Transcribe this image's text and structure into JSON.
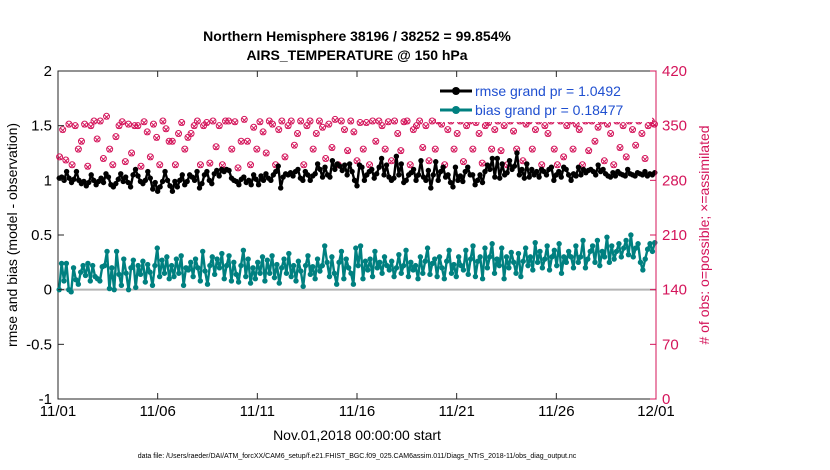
{
  "chart_data": {
    "type": "line",
    "title_lines": [
      "Northern Hemisphere 38196 / 38252 = 99.854%",
      "AIRS_TEMPERATURE @ 150 hPa"
    ],
    "xlabel": "Nov.01,2018 00:00:00 start",
    "ylabel": "rmse and bias (model - observation)",
    "y2label": "# of obs: o=possible; ×=assimilated",
    "x_ticks": [
      "11/01",
      "11/06",
      "11/11",
      "11/16",
      "11/21",
      "11/26",
      "12/01"
    ],
    "y_ticks": [
      "-1",
      "-0.5",
      "0",
      "0.5",
      "1",
      "1.5",
      "2"
    ],
    "y2_ticks": [
      "0",
      "70",
      "140",
      "210",
      "280",
      "350",
      "420"
    ],
    "xlim": [
      0,
      30
    ],
    "ylim": [
      -1,
      2
    ],
    "y2lim": [
      0,
      420
    ],
    "grid": false,
    "legend_position": "top-right",
    "zero_line": true,
    "colors": {
      "rmse": "#000000",
      "bias": "#008080",
      "obs": "#d4145a",
      "zero": "#b4b4b4"
    },
    "footnote": "data file: /Users/raeder/DAI/ATM_forcXX/CAM6_setup/f.e21.FHIST_BGC.f09_025.CAM6assim.011/Diags_NTrS_2018-11/obs_diag_output.nc",
    "series": [
      {
        "name": "rmse grand pr = 1.0492",
        "axis": "left",
        "values": [
          1.02,
          1.03,
          1.0,
          1.08,
          1.02,
          0.98,
          1.01,
          1.08,
          1.0,
          0.97,
          0.99,
          0.95,
          0.98,
          1.05,
          1.0,
          0.96,
          0.99,
          1.02,
          0.98,
          1.06,
          1.03,
          0.96,
          0.94,
          0.97,
          1.01,
          1.06,
          0.99,
          1.03,
          0.98,
          0.94,
          1.05,
          1.1,
          1.04,
          0.99,
          0.97,
          1.0,
          1.08,
          1.02,
          0.92,
          0.98,
          0.9,
          0.94,
          0.99,
          1.08,
          1.0,
          0.95,
          0.9,
          0.99,
          0.94,
          1.0,
          1.05,
          0.96,
          0.99,
          1.05,
          1.03,
          1.0,
          1.08,
          0.93,
          0.97,
          1.05,
          1.08,
          1.0,
          0.97,
          1.06,
          1.09,
          1.04,
          1.1,
          1.08,
          1.1,
          1.09,
          1.02,
          1.0,
          0.99,
          0.96,
          1.01,
          1.03,
          0.98,
          1.0,
          0.96,
          1.05,
          1.01,
          0.96,
          1.04,
          1.0,
          1.06,
          1.02,
          1.0,
          1.05,
          1.08,
          1.13,
          0.93,
          1.03,
          1.06,
          1.05,
          1.07,
          1.04,
          1.08,
          1.1,
          1.02,
          1.0,
          1.08,
          1.05,
          1.0,
          1.04,
          1.06,
          1.15,
          1.1,
          1.03,
          1.12,
          1.05,
          1.03,
          1.18,
          1.1,
          1.15,
          1.13,
          1.09,
          1.14,
          1.05,
          1.15,
          1.08,
          1.0,
          0.95,
          1.14,
          1.12,
          1.0,
          1.05,
          1.08,
          1.1,
          1.02,
          1.06,
          1.12,
          1.2,
          1.05,
          1.14,
          1.03,
          1.0,
          1.02,
          1.22,
          1.05,
          1.15,
          0.98,
          1.0,
          1.05,
          1.07,
          1.1,
          1.0,
          1.05,
          1.18,
          1.03,
          1.0,
          1.09,
          0.93,
          1.05,
          1.17,
          1.0,
          1.08,
          1.12,
          1.03,
          1.05,
          0.98,
          0.94,
          1.12,
          1.0,
          1.04,
          0.99,
          1.08,
          1.12,
          1.05,
          1.05,
          0.96,
          1.0,
          1.05,
          0.98,
          1.08,
          1.14,
          1.1,
          1.2,
          1.03,
          1.2,
          1.02,
          1.15,
          1.05,
          1.07,
          1.18,
          1.1,
          1.13,
          1.25,
          1.05,
          1.1,
          1.02,
          1.15,
          1.03,
          1.1,
          1.05,
          1.08,
          1.03,
          1.1,
          1.08,
          1.05,
          1.1,
          1.12,
          1.0,
          1.05,
          1.08,
          1.03,
          1.12,
          1.1,
          1.05,
          1.0,
          1.06,
          1.04,
          1.12,
          1.05,
          1.1,
          1.07,
          1.09,
          1.1,
          1.08,
          1.05,
          1.14,
          1.08,
          1.1,
          1.06,
          1.04,
          1.03,
          1.07,
          1.04,
          1.08,
          1.06,
          1.05,
          1.04,
          1.1,
          1.06,
          1.05,
          1.04,
          1.07,
          1.06,
          1.05,
          1.08,
          1.04,
          1.06,
          1.05,
          1.07
        ]
      },
      {
        "name": "bias grand pr = 0.18477",
        "axis": "left",
        "values": [
          0.0,
          0.24,
          0.08,
          0.24,
          0.0,
          -0.02,
          0.2,
          0.09,
          0.05,
          0.16,
          0.22,
          0.13,
          0.24,
          0.08,
          0.22,
          0.12,
          0.1,
          0.08,
          0.21,
          0.22,
          0.35,
          0.01,
          0.2,
          0.0,
          0.35,
          0.14,
          0.04,
          0.28,
          0.15,
          0.0,
          0.2,
          0.27,
          0.02,
          0.22,
          0.14,
          0.26,
          0.07,
          0.23,
          0.16,
          0.04,
          0.22,
          0.38,
          0.12,
          0.27,
          0.15,
          0.3,
          0.1,
          0.22,
          0.12,
          0.28,
          0.15,
          0.31,
          0.04,
          0.2,
          0.18,
          0.25,
          0.12,
          0.28,
          0.2,
          0.08,
          0.35,
          0.17,
          0.05,
          0.22,
          0.3,
          0.14,
          0.28,
          0.2,
          0.33,
          0.1,
          0.22,
          0.31,
          0.08,
          0.25,
          0.14,
          0.07,
          0.22,
          0.36,
          0.12,
          0.28,
          0.06,
          0.2,
          0.1,
          0.25,
          0.15,
          0.3,
          0.08,
          0.27,
          0.15,
          0.31,
          0.11,
          0.23,
          0.06,
          0.2,
          0.28,
          0.15,
          0.33,
          0.12,
          0.22,
          0.08,
          0.26,
          0.17,
          0.03,
          0.22,
          0.31,
          0.14,
          0.21,
          0.1,
          0.28,
          0.17,
          0.22,
          0.4,
          0.25,
          0.12,
          0.3,
          0.15,
          0.05,
          0.25,
          0.35,
          0.1,
          0.28,
          0.2,
          0.15,
          0.05,
          0.38,
          0.22,
          0.4,
          0.1,
          0.26,
          0.18,
          0.28,
          0.12,
          0.35,
          0.2,
          0.25,
          0.15,
          0.3,
          0.22,
          0.18,
          0.26,
          0.12,
          0.2,
          0.32,
          0.15,
          0.22,
          0.36,
          0.12,
          0.25,
          0.18,
          0.22,
          0.1,
          0.3,
          0.15,
          0.26,
          0.38,
          0.14,
          0.24,
          0.28,
          0.12,
          0.3,
          0.2,
          0.1,
          0.26,
          0.36,
          0.15,
          0.23,
          0.12,
          0.3,
          0.22,
          0.18,
          0.36,
          0.14,
          0.28,
          0.4,
          0.12,
          0.26,
          0.3,
          0.1,
          0.38,
          0.2,
          0.3,
          0.42,
          0.15,
          0.28,
          0.22,
          0.38,
          0.1,
          0.3,
          0.2,
          0.34,
          0.25,
          0.15,
          0.33,
          0.12,
          0.26,
          0.38,
          0.22,
          0.3,
          0.18,
          0.43,
          0.25,
          0.35,
          0.2,
          0.28,
          0.4,
          0.18,
          0.3,
          0.36,
          0.22,
          0.42,
          0.15,
          0.3,
          0.25,
          0.35,
          0.3,
          0.2,
          0.4,
          0.25,
          0.3,
          0.45,
          0.2,
          0.28,
          0.35,
          0.4,
          0.25,
          0.45,
          0.22,
          0.35,
          0.3,
          0.48,
          0.25,
          0.4,
          0.28,
          0.35,
          0.42,
          0.3,
          0.38,
          0.45,
          0.32,
          0.5,
          0.3,
          0.38,
          0.42,
          0.25,
          0.18,
          0.28,
          0.37,
          0.42,
          0.35,
          0.43
        ]
      }
    ],
    "obs_possible": [
      310,
      345,
      306,
      352,
      300,
      350,
      320,
      330,
      352,
      298,
      350,
      356,
      333,
      356,
      308,
      362,
      320,
      300,
      336,
      350,
      355,
      304,
      352,
      315,
      350,
      350,
      298,
      355,
      342,
      310,
      352,
      335,
      300,
      356,
      346,
      330,
      330,
      300,
      340,
      354,
      320,
      335,
      340,
      350,
      356,
      300,
      350,
      354,
      302,
      356,
      323,
      350,
      300,
      356,
      356,
      320,
      355,
      296,
      330,
      358,
      330,
      300,
      348,
      320,
      355,
      342,
      315,
      356,
      352,
      300,
      345,
      356,
      310,
      350,
      356,
      325,
      340,
      356,
      300,
      350,
      356,
      320,
      340,
      356,
      348,
      308,
      352,
      322,
      358,
      300,
      356,
      345,
      318,
      356,
      342,
      305,
      354,
      320,
      354,
      300,
      356,
      330,
      356,
      350,
      320,
      355,
      305,
      356,
      340,
      318,
      355,
      356,
      300,
      345,
      350,
      356,
      322,
      350,
      305,
      356,
      320,
      356,
      352,
      300,
      345,
      356,
      320,
      340,
      356,
      304,
      350,
      356,
      320,
      354,
      340,
      302,
      350,
      354,
      320,
      345,
      356,
      318,
      350,
      300,
      356,
      343,
      320,
      356,
      305,
      352,
      356,
      320,
      345,
      356,
      300,
      350,
      340,
      356,
      320,
      300,
      356,
      310,
      350,
      356,
      320,
      352,
      345,
      300,
      356,
      318,
      356,
      330,
      348,
      356,
      305,
      352,
      340,
      300,
      356,
      322,
      350,
      310,
      356,
      345,
      325,
      356,
      340,
      308,
      350,
      356,
      352
    ],
    "obs_assimilated": [
      309,
      344,
      305,
      351,
      299,
      349,
      319,
      329,
      351,
      297,
      349,
      355,
      332,
      355,
      307,
      361,
      319,
      299,
      335,
      349,
      354,
      303,
      351,
      314,
      349,
      349,
      297,
      354,
      341,
      309,
      351,
      334,
      299,
      355,
      345,
      329,
      329,
      299,
      339,
      353,
      319,
      334,
      339,
      349,
      355,
      299,
      349,
      353,
      301,
      355,
      322,
      349,
      299,
      355,
      355,
      319,
      354,
      295,
      329,
      357,
      329,
      299,
      347,
      319,
      354,
      341,
      314,
      355,
      351,
      299,
      344,
      355,
      309,
      349,
      355,
      324,
      339,
      355,
      299,
      349,
      355,
      319,
      339,
      355,
      347,
      307,
      351,
      321,
      357,
      299,
      355,
      344,
      317,
      355,
      341,
      304,
      353,
      319,
      353,
      299,
      355,
      329,
      355,
      349,
      319,
      354,
      304,
      355,
      339,
      317,
      354,
      355,
      299,
      344,
      349,
      355,
      321,
      349,
      304,
      355,
      319,
      355,
      351,
      299,
      344,
      355,
      319,
      339,
      355,
      303,
      349,
      355,
      319,
      353,
      339,
      301,
      349,
      353,
      319,
      344,
      355,
      317,
      349,
      299,
      355,
      342,
      319,
      355,
      304,
      351,
      355,
      319,
      344,
      355,
      299,
      349,
      339,
      355,
      319,
      299,
      355,
      309,
      349,
      355,
      319,
      351,
      344,
      299,
      355,
      317,
      355,
      329,
      347,
      355,
      304,
      351,
      339,
      299,
      355,
      321,
      349,
      309,
      355,
      344,
      324,
      355,
      339,
      307,
      349,
      355,
      351
    ]
  }
}
